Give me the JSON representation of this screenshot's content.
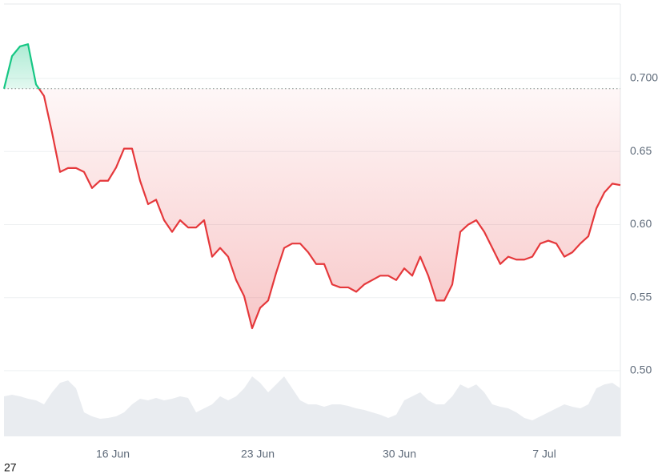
{
  "chart_data": {
    "type": "line",
    "series": [
      {
        "color": "#e5383b",
        "up_color": "#16c784",
        "values": [
          0.693,
          0.7153,
          0.722,
          0.7235,
          0.696,
          0.688,
          0.663,
          0.636,
          0.6387,
          0.6387,
          0.636,
          0.625,
          0.63,
          0.63,
          0.639,
          0.652,
          0.652,
          0.63,
          0.614,
          0.617,
          0.603,
          0.595,
          0.603,
          0.598,
          0.598,
          0.603,
          0.578,
          0.584,
          0.578,
          0.562,
          0.551,
          0.529,
          0.543,
          0.548,
          0.567,
          0.584,
          0.587,
          0.587,
          0.581,
          0.573,
          0.573,
          0.559,
          0.557,
          0.557,
          0.554,
          0.559,
          0.562,
          0.565,
          0.565,
          0.562,
          0.57,
          0.565,
          0.578,
          0.565,
          0.548,
          0.548,
          0.559,
          0.595,
          0.6,
          0.603,
          0.595,
          0.584,
          0.573,
          0.578,
          0.576,
          0.576,
          0.578,
          0.587,
          0.589,
          0.587,
          0.578,
          0.581,
          0.587,
          0.592,
          0.611,
          0.622,
          0.628,
          0.627
        ]
      },
      {
        "type": "area",
        "axis": "y2",
        "color": "#e9ecf0",
        "values": [
          50,
          52,
          50,
          47,
          45,
          40,
          55,
          67,
          70,
          60,
          30,
          25,
          22,
          23,
          25,
          30,
          40,
          47,
          45,
          48,
          45,
          47,
          50,
          48,
          30,
          35,
          40,
          50,
          45,
          50,
          60,
          75,
          67,
          55,
          65,
          75,
          60,
          45,
          40,
          40,
          37,
          40,
          40,
          38,
          35,
          33,
          30,
          27,
          23,
          27,
          45,
          50,
          55,
          45,
          40,
          40,
          50,
          65,
          60,
          65,
          55,
          40,
          37,
          35,
          30,
          23,
          20,
          25,
          30,
          35,
          40,
          37,
          35,
          40,
          60,
          65,
          67,
          60
        ]
      }
    ],
    "baseline": 0.693,
    "xlim": [
      0,
      77
    ],
    "xticks": [
      {
        "value": 13.6,
        "label": "16 Jun"
      },
      {
        "value": 31.7,
        "label": "23 Jun"
      },
      {
        "value": 49.4,
        "label": "30 Jun"
      },
      {
        "value": 67.5,
        "label": "7 Jul"
      }
    ],
    "ylim": [
      0.455,
      0.751
    ],
    "yticks": [
      {
        "value": 0.5,
        "label": "0.50"
      },
      0.55,
      {
        "value": 0.6,
        "label": "0.60"
      },
      0.65,
      {
        "value": 0.7,
        "label": "0.700"
      }
    ],
    "y2lim": [
      0,
      100
    ],
    "grid": true
  },
  "corner_label": "27"
}
